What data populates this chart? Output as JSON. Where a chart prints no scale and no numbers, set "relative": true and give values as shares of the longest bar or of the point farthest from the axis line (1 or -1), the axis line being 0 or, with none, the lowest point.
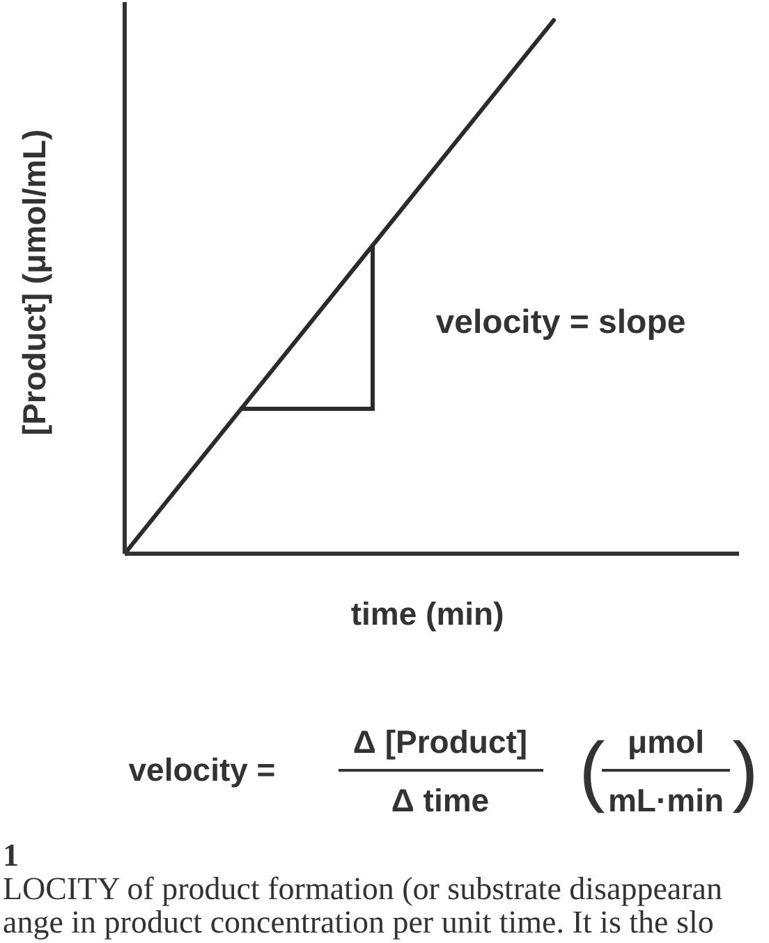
{
  "chart_data": {
    "type": "line",
    "relative": true,
    "categories": [
      null,
      null
    ],
    "values": [
      0,
      1
    ],
    "color": "#2b2b2b",
    "xlabel": "time  (min)",
    "ylabel": "[Product]  (μmol/mL)",
    "annotations": [
      "velocity = slope",
      "velocity =",
      "Δ [Product]",
      "Δ time",
      "(",
      "μmol",
      "mL·min",
      ")",
      "1",
      "LOCITY of product formation (or substrate disappearan",
      "ange in product concentration per unit time. It is the slo"
    ]
  }
}
